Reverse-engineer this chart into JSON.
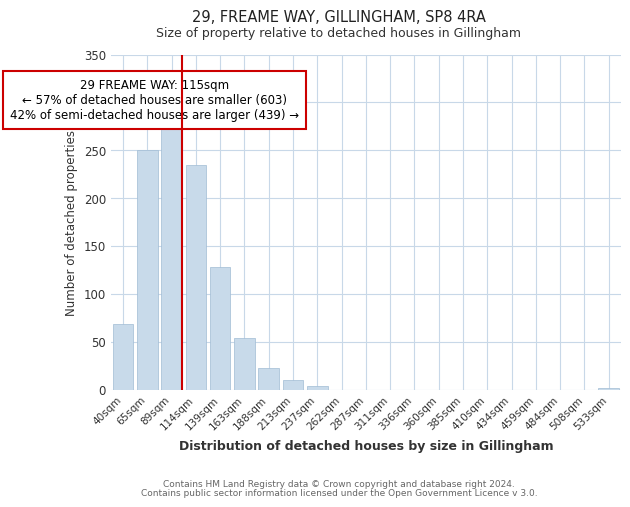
{
  "title": "29, FREAME WAY, GILLINGHAM, SP8 4RA",
  "subtitle": "Size of property relative to detached houses in Gillingham",
  "xlabel": "Distribution of detached houses by size in Gillingham",
  "ylabel": "Number of detached properties",
  "bar_labels": [
    "40sqm",
    "65sqm",
    "89sqm",
    "114sqm",
    "139sqm",
    "163sqm",
    "188sqm",
    "213sqm",
    "237sqm",
    "262sqm",
    "287sqm",
    "311sqm",
    "336sqm",
    "360sqm",
    "385sqm",
    "410sqm",
    "434sqm",
    "459sqm",
    "484sqm",
    "508sqm",
    "533sqm"
  ],
  "bar_values": [
    68,
    250,
    287,
    235,
    128,
    54,
    22,
    10,
    4,
    0,
    0,
    0,
    0,
    0,
    0,
    0,
    0,
    0,
    0,
    0,
    2
  ],
  "bar_color": "#c8daea",
  "bar_edge_color": "#a0bcd4",
  "highlight_line_after_index": 2,
  "highlight_color": "#cc0000",
  "annotation_title": "29 FREAME WAY: 115sqm",
  "annotation_line1": "← 57% of detached houses are smaller (603)",
  "annotation_line2": "42% of semi-detached houses are larger (439) →",
  "annotation_box_color": "#ffffff",
  "annotation_box_edge": "#cc0000",
  "ylim": [
    0,
    350
  ],
  "yticks": [
    0,
    50,
    100,
    150,
    200,
    250,
    300,
    350
  ],
  "footer1": "Contains HM Land Registry data © Crown copyright and database right 2024.",
  "footer2": "Contains public sector information licensed under the Open Government Licence v 3.0.",
  "background_color": "#ffffff",
  "grid_color": "#c8d8e8"
}
